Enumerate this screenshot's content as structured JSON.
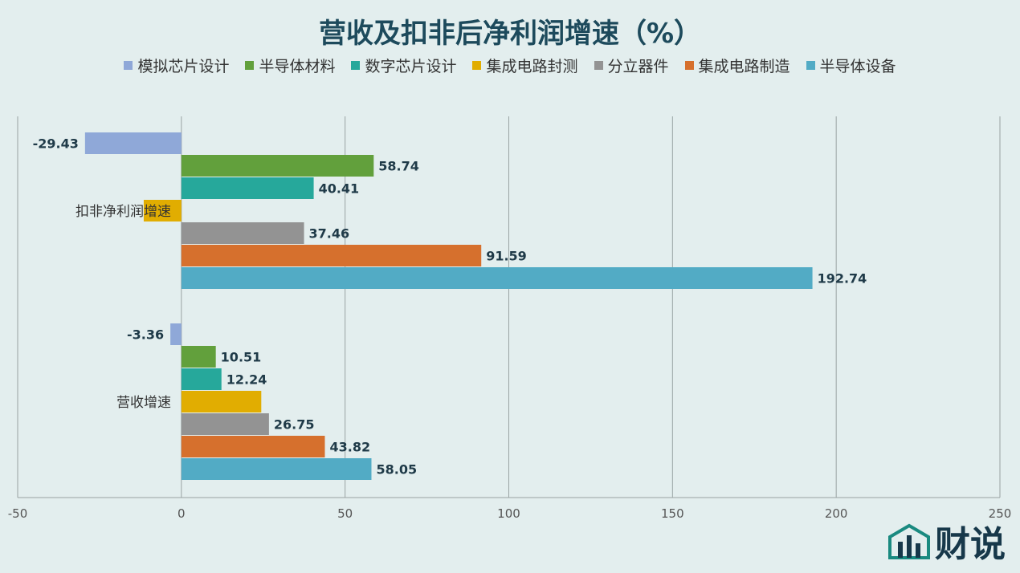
{
  "chart_data": {
    "type": "bar",
    "orientation": "horizontal",
    "title": "营收及扣非后净利润增速（%）",
    "categories": [
      "扣非净利润增速",
      "营收增速"
    ],
    "series": [
      {
        "name": "模拟芯片设计",
        "color": "#8fa8d8",
        "values": [
          -29.43,
          -3.36
        ],
        "labels": [
          "-29.43",
          "-3.36"
        ]
      },
      {
        "name": "半导体材料",
        "color": "#62a03c",
        "values": [
          58.74,
          10.51
        ],
        "labels": [
          "58.74",
          "10.51"
        ]
      },
      {
        "name": "数字芯片设计",
        "color": "#26a89b",
        "values": [
          40.41,
          12.24
        ],
        "labels": [
          "40.41",
          "12.24"
        ]
      },
      {
        "name": "集成电路封测",
        "color": "#e1ad01",
        "values": [
          -11.5,
          24.4
        ],
        "labels": [
          "",
          ""
        ]
      },
      {
        "name": "分立器件",
        "color": "#939393",
        "values": [
          37.46,
          26.75
        ],
        "labels": [
          "37.46",
          "26.75"
        ]
      },
      {
        "name": "集成电路制造",
        "color": "#d6702d",
        "values": [
          91.59,
          43.82
        ],
        "labels": [
          "91.59",
          "43.82"
        ]
      },
      {
        "name": "半导体设备",
        "color": "#52abc5",
        "values": [
          192.74,
          58.05
        ],
        "labels": [
          "192.74",
          "58.05"
        ]
      }
    ],
    "xlim": [
      -50,
      250
    ],
    "xticks": [
      "-50",
      "0",
      "50",
      "100",
      "150",
      "200",
      "250"
    ],
    "grid": true,
    "legend_position": "top"
  },
  "brand": {
    "name": "财说"
  }
}
